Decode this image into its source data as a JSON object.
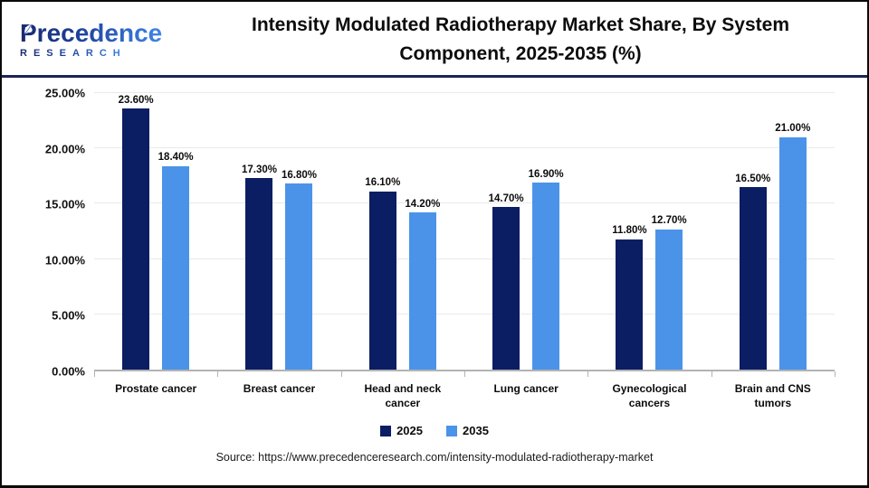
{
  "logo": {
    "brand": "Precedence",
    "sub_brand": "RESEARCH"
  },
  "header": {
    "title_line1": "Intensity Modulated Radiotherapy Market Share, By System",
    "title_line2": "Component, 2025-2035 (%)"
  },
  "chart_data": {
    "type": "bar",
    "title": "Intensity Modulated Radiotherapy Market Share, By System Component, 2025-2035 (%)",
    "categories": [
      "Prostate cancer",
      "Breast cancer",
      "Head and neck cancer",
      "Lung cancer",
      "Gynecological cancers",
      "Brain and CNS tumors"
    ],
    "series": [
      {
        "name": "2025",
        "color": "#0b1d63",
        "values": [
          23.6,
          17.3,
          16.1,
          14.7,
          11.8,
          16.5
        ],
        "data_labels": [
          "23.60%",
          "17.30%",
          "16.10%",
          "14.70%",
          "11.80%",
          "16.50%"
        ]
      },
      {
        "name": "2035",
        "color": "#4b93e8",
        "values": [
          18.4,
          16.8,
          14.2,
          16.9,
          12.7,
          21.0
        ],
        "data_labels": [
          "18.40%",
          "16.80%",
          "14.20%",
          "16.90%",
          "12.70%",
          "21.00%"
        ]
      }
    ],
    "xlabel": "",
    "ylabel": "",
    "ylim": [
      0,
      25
    ],
    "y_ticks": [
      {
        "value": 0,
        "label": "0.00%"
      },
      {
        "value": 5,
        "label": "5.00%"
      },
      {
        "value": 10,
        "label": "10.00%"
      },
      {
        "value": 15,
        "label": "15.00%"
      },
      {
        "value": 20,
        "label": "20.00%"
      },
      {
        "value": 25,
        "label": "25.00%"
      }
    ],
    "grid": true,
    "legend_position": "bottom",
    "colors": {
      "series_2025": "#0b1d63",
      "series_2035": "#4b93e8",
      "gridline": "#e9e9e9",
      "axis": "#b3b3b3",
      "header_rule": "#1b2556"
    }
  },
  "footer": {
    "source": "Source: https://www.precedenceresearch.com/intensity-modulated-radiotherapy-market"
  }
}
